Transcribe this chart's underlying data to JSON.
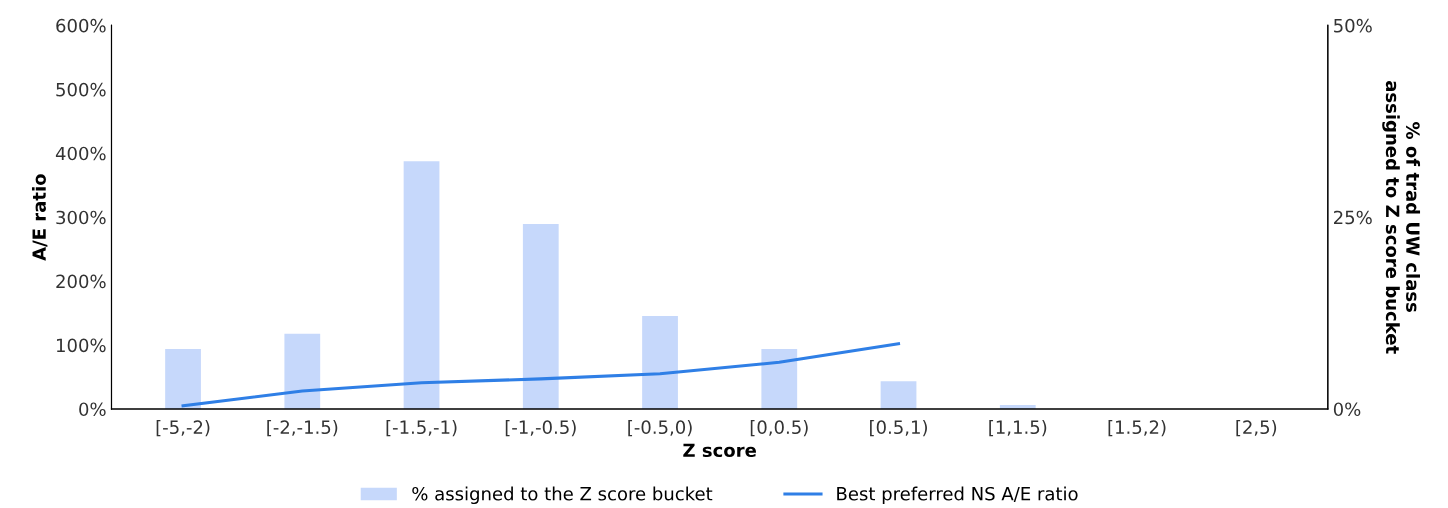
{
  "chart_data": {
    "type": "bar",
    "xlabel": "Z score",
    "ylabel": "A/E ratio",
    "y2label": "% of trad UW class\nassigned to Z score bucket",
    "categories": [
      "[-5,-2)",
      "[-2,-1.5)",
      "[-1.5,-1)",
      "[-1,-0.5)",
      "[-0.5,0)",
      "[0,0.5)",
      "[0.5,1)",
      "[1,1.5)",
      "[1.5,2)",
      "[2,5)"
    ],
    "series": [
      {
        "name": "% assigned to the Z score bucket",
        "axis": "y2",
        "color": "#c6d8fb",
        "values": [
          7.8,
          9.8,
          32.3,
          24.1,
          12.1,
          7.8,
          3.6,
          0.5,
          0,
          0
        ]
      },
      {
        "name": "Best preferred NS A/E ratio",
        "type": "line",
        "axis": "y",
        "color": "#2f7fe6",
        "values": [
          5,
          28,
          41,
          47,
          55,
          73,
          102,
          null,
          null,
          null
        ]
      }
    ],
    "ylim": [
      0,
      600
    ],
    "yticks": [
      {
        "value": 0,
        "label": "0%"
      },
      {
        "value": 100,
        "label": "100%"
      },
      {
        "value": 200,
        "label": "200%"
      },
      {
        "value": 300,
        "label": "300%"
      },
      {
        "value": 400,
        "label": "400%"
      },
      {
        "value": 500,
        "label": "500%"
      },
      {
        "value": 600,
        "label": "600%"
      }
    ],
    "y2lim": [
      0,
      50
    ],
    "y2ticks": [
      {
        "value": 0,
        "label": "0%"
      },
      {
        "value": 25,
        "label": "25%"
      },
      {
        "value": 50,
        "label": "50%"
      }
    ],
    "legend": "bottom",
    "marker": "none",
    "line_style": "solid"
  }
}
